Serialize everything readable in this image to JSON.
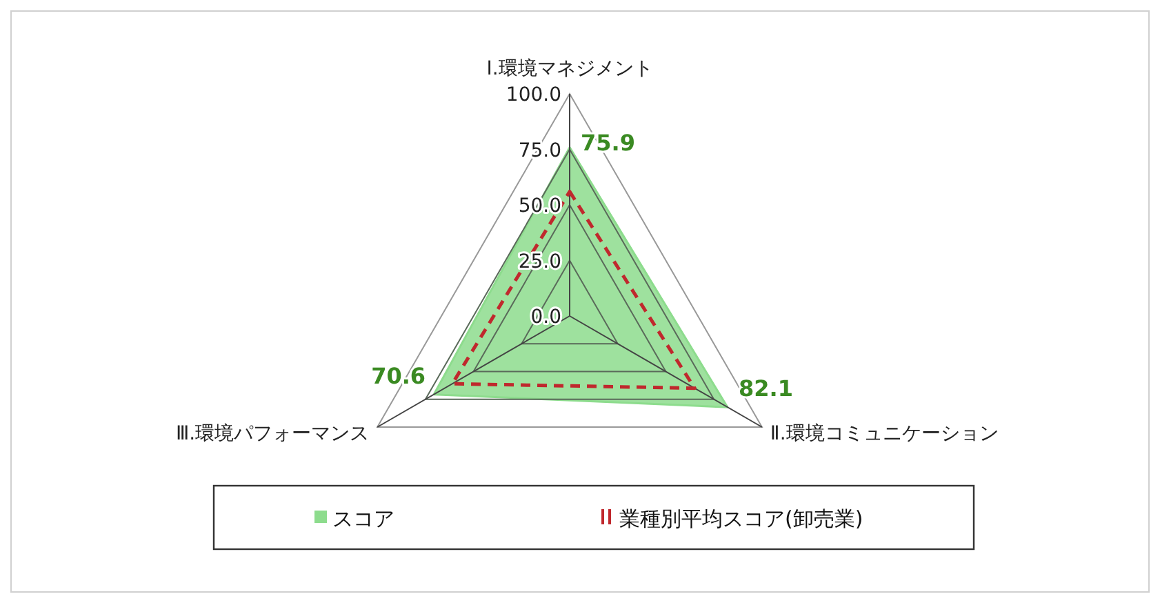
{
  "chart_data": {
    "type": "radar",
    "categories": [
      "Ⅰ.環境マネジメント",
      "Ⅱ.環境コミュニケーション",
      "Ⅲ.環境パフォーマンス"
    ],
    "ylim": [
      0,
      100
    ],
    "yticks": [
      {
        "value": 0,
        "label": "0.0"
      },
      {
        "value": 25,
        "label": "25.0"
      },
      {
        "value": 50,
        "label": "50.0"
      },
      {
        "value": 75,
        "label": "75.0"
      },
      {
        "value": 100,
        "label": "100.0"
      }
    ],
    "grid": true,
    "legend": "bottom",
    "series": [
      {
        "name": "スコア",
        "color": "#8ddc8d",
        "values": [
          75.9,
          82.1,
          70.6
        ],
        "value_labels": [
          "75.9",
          "82.1",
          "70.6"
        ]
      },
      {
        "name": "業種別平均スコア(卸売業)",
        "line_style": "dashed",
        "color": "#c0282d",
        "values": [
          56,
          65,
          61
        ]
      }
    ]
  }
}
